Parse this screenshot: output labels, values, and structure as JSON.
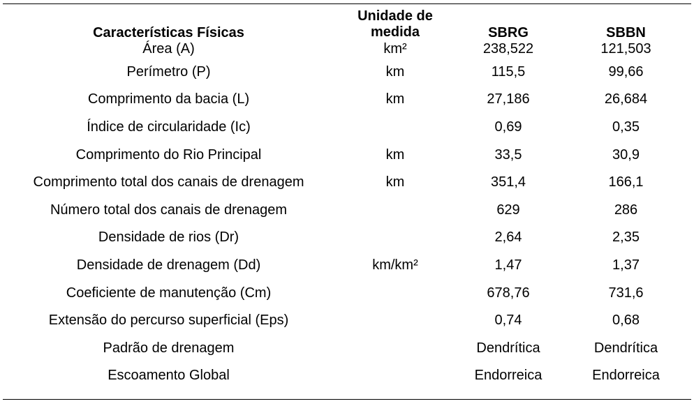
{
  "table": {
    "headers": {
      "characteristic": "Características Físicas",
      "unit_line1": "Unidade de",
      "unit_line2": "medida",
      "sbrg": "SBRG",
      "sbbn": "SBBN"
    },
    "rows": [
      {
        "characteristic": "Área (A)",
        "unit": "km²",
        "sbrg": "238,522",
        "sbbn": "121,503"
      },
      {
        "characteristic": "Perímetro (P)",
        "unit": "km",
        "sbrg": "115,5",
        "sbbn": "99,66"
      },
      {
        "characteristic": "Comprimento da bacia (L)",
        "unit": "km",
        "sbrg": "27,186",
        "sbbn": "26,684"
      },
      {
        "characteristic": "Índice de circularidade (Ic)",
        "unit": "",
        "sbrg": "0,69",
        "sbbn": "0,35"
      },
      {
        "characteristic": "Comprimento do Rio Principal",
        "unit": "km",
        "sbrg": "33,5",
        "sbbn": "30,9"
      },
      {
        "characteristic": "Comprimento total dos canais de drenagem",
        "unit": "km",
        "sbrg": "351,4",
        "sbbn": "166,1"
      },
      {
        "characteristic": "Número total dos canais de drenagem",
        "unit": "",
        "sbrg": "629",
        "sbbn": "286"
      },
      {
        "characteristic": "Densidade de rios (Dr)",
        "unit": "",
        "sbrg": "2,64",
        "sbbn": "2,35"
      },
      {
        "characteristic": "Densidade de drenagem (Dd)",
        "unit": "km/km²",
        "sbrg": "1,47",
        "sbbn": "1,37"
      },
      {
        "characteristic": "Coeficiente de manutenção (Cm)",
        "unit": "",
        "sbrg": "678,76",
        "sbbn": "731,6"
      },
      {
        "characteristic": "Extensão do percurso superficial (Eps)",
        "unit": "",
        "sbrg": "0,74",
        "sbbn": "0,68"
      },
      {
        "characteristic": "Padrão de drenagem",
        "unit": "",
        "sbrg": "Dendrítica",
        "sbbn": "Dendrítica"
      },
      {
        "characteristic": "Escoamento Global",
        "unit": "",
        "sbrg": "Endorreica",
        "sbbn": "Endorreica"
      }
    ]
  }
}
